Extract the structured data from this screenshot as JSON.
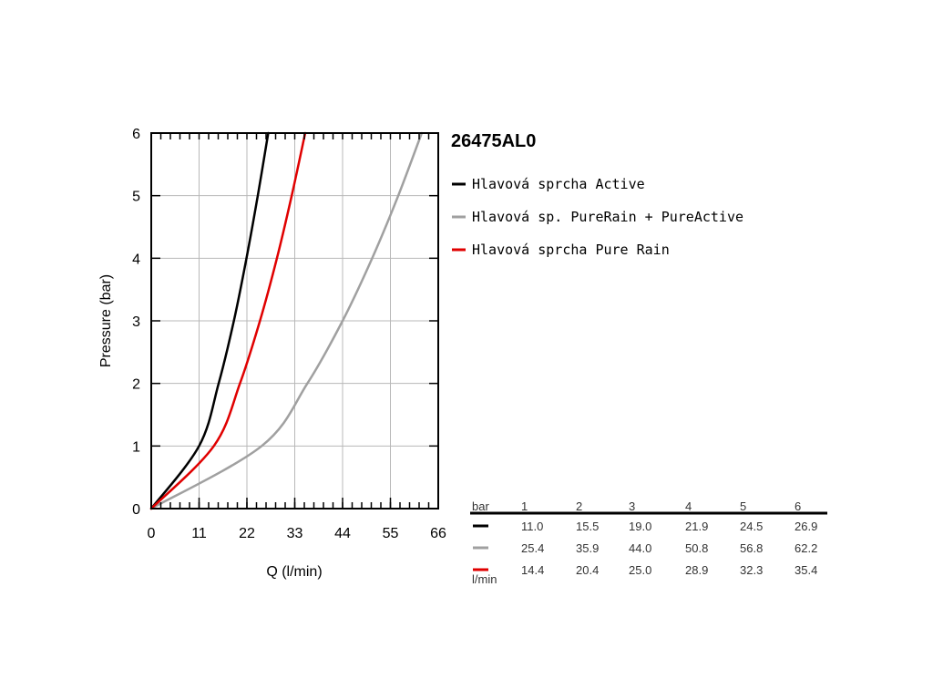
{
  "chart_data": {
    "type": "line",
    "title": "26475AL0",
    "xlabel": "Q (l/min)",
    "ylabel": "Pressure (bar)",
    "xlim": [
      0,
      66
    ],
    "ylim": [
      0,
      6
    ],
    "xticks": [
      "0",
      "11",
      "22",
      "33",
      "44",
      "55",
      "66"
    ],
    "yticks": [
      "0",
      "1",
      "2",
      "3",
      "4",
      "5",
      "6"
    ],
    "grid": true,
    "legend_position": "right",
    "series": [
      {
        "name": "Hlavová sprcha Active",
        "color": "#000000",
        "x": [
          0,
          11.0,
          15.5,
          19.0,
          21.9,
          24.5,
          26.9
        ],
        "y": [
          0,
          1,
          2,
          3,
          4,
          5,
          6
        ]
      },
      {
        "name": "Hlavová sp. PureRain + PureActive",
        "color": "#a0a0a0",
        "x": [
          0,
          25.4,
          35.9,
          44.0,
          50.8,
          56.8,
          62.2
        ],
        "y": [
          0,
          1,
          2,
          3,
          4,
          5,
          6
        ]
      },
      {
        "name": "Hlavová sprcha Pure Rain",
        "color": "#e00000",
        "x": [
          0,
          14.4,
          20.4,
          25.0,
          28.9,
          32.3,
          35.4
        ],
        "y": [
          0,
          1,
          2,
          3,
          4,
          5,
          6
        ]
      }
    ],
    "table": {
      "header_label": "bar",
      "columns": [
        "1",
        "2",
        "3",
        "4",
        "5",
        "6"
      ],
      "rows": [
        [
          "11.0",
          "15.5",
          "19.0",
          "21.9",
          "24.5",
          "26.9"
        ],
        [
          "25.4",
          "35.9",
          "44.0",
          "50.8",
          "56.8",
          "62.2"
        ],
        [
          "14.4",
          "20.4",
          "25.0",
          "28.9",
          "32.3",
          "35.4"
        ]
      ],
      "unit_label": "l/min"
    }
  }
}
